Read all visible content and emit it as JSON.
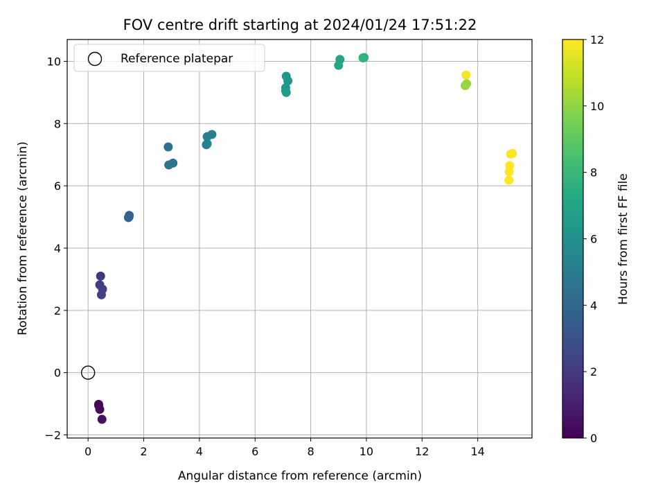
{
  "chart_data": {
    "type": "scatter",
    "title": "FOV centre drift starting at 2024/01/24 17:51:22",
    "xlabel": "Angular distance from reference (arcmin)",
    "ylabel": "Rotation from reference (arcmin)",
    "xlim": [
      -0.75,
      15.95
    ],
    "ylim": [
      -2.1,
      10.7
    ],
    "xticks": [
      0,
      2,
      4,
      6,
      8,
      10,
      12,
      14
    ],
    "yticks": [
      -2,
      0,
      2,
      4,
      6,
      8,
      10
    ],
    "grid": true,
    "legend": {
      "placement": "upper-left",
      "entries": [
        "Reference platepar"
      ]
    },
    "reference_point": {
      "x": 0,
      "y": 0
    },
    "colorbar": {
      "label": "Hours from first FF file",
      "range": [
        0,
        12
      ],
      "ticks": [
        0,
        2,
        4,
        6,
        8,
        10,
        12
      ],
      "colormap": "viridis"
    },
    "points": [
      {
        "x": 0.38,
        "y": -1.02,
        "t": 0.1
      },
      {
        "x": 0.38,
        "y": -1.05,
        "t": 0.15
      },
      {
        "x": 0.42,
        "y": -1.18,
        "t": 0.3
      },
      {
        "x": 0.5,
        "y": -1.5,
        "t": 0.5
      },
      {
        "x": 0.45,
        "y": 3.1,
        "t": 2.0
      },
      {
        "x": 0.42,
        "y": 2.82,
        "t": 2.1
      },
      {
        "x": 0.52,
        "y": 2.68,
        "t": 2.2
      },
      {
        "x": 0.48,
        "y": 2.5,
        "t": 2.3
      },
      {
        "x": 1.48,
        "y": 5.05,
        "t": 3.7
      },
      {
        "x": 1.45,
        "y": 4.98,
        "t": 3.8
      },
      {
        "x": 1.47,
        "y": 5.0,
        "t": 3.85
      },
      {
        "x": 2.88,
        "y": 7.25,
        "t": 4.5
      },
      {
        "x": 2.9,
        "y": 6.67,
        "t": 4.55
      },
      {
        "x": 3.05,
        "y": 6.73,
        "t": 4.6
      },
      {
        "x": 4.28,
        "y": 7.58,
        "t": 5.1
      },
      {
        "x": 4.45,
        "y": 7.65,
        "t": 5.2
      },
      {
        "x": 4.25,
        "y": 7.32,
        "t": 5.3
      },
      {
        "x": 4.28,
        "y": 7.35,
        "t": 5.35
      },
      {
        "x": 7.12,
        "y": 9.52,
        "t": 6.2
      },
      {
        "x": 7.18,
        "y": 9.37,
        "t": 6.3
      },
      {
        "x": 7.1,
        "y": 9.15,
        "t": 6.35
      },
      {
        "x": 7.1,
        "y": 9.05,
        "t": 6.4
      },
      {
        "x": 7.12,
        "y": 9.0,
        "t": 6.45
      },
      {
        "x": 9.05,
        "y": 10.06,
        "t": 7.0
      },
      {
        "x": 9.0,
        "y": 9.87,
        "t": 7.1
      },
      {
        "x": 9.88,
        "y": 10.11,
        "t": 7.6
      },
      {
        "x": 9.92,
        "y": 10.12,
        "t": 7.7
      },
      {
        "x": 13.55,
        "y": 9.22,
        "t": 10.0
      },
      {
        "x": 13.6,
        "y": 9.28,
        "t": 10.1
      },
      {
        "x": 13.58,
        "y": 9.56,
        "t": 11.8
      },
      {
        "x": 15.18,
        "y": 7.02,
        "t": 11.9
      },
      {
        "x": 15.25,
        "y": 7.04,
        "t": 11.9
      },
      {
        "x": 15.15,
        "y": 6.65,
        "t": 12.0
      },
      {
        "x": 15.13,
        "y": 6.45,
        "t": 12.0
      },
      {
        "x": 15.12,
        "y": 6.18,
        "t": 12.0
      }
    ]
  }
}
